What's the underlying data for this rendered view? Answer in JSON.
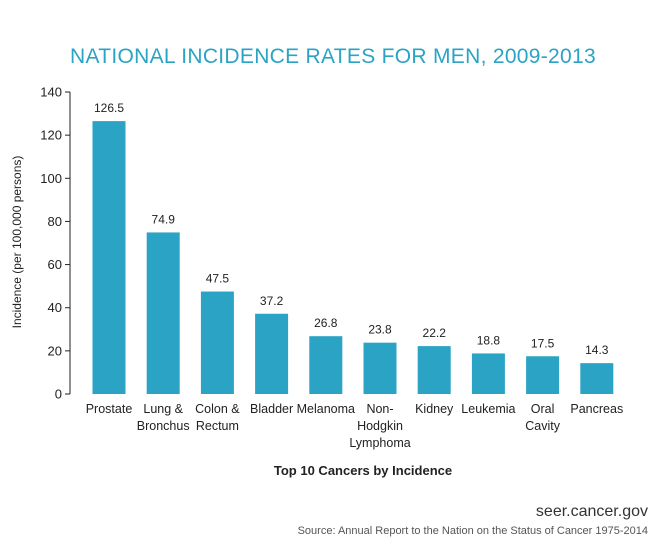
{
  "chart_data": {
    "type": "bar",
    "title": "NATIONAL INCIDENCE RATES FOR MEN, 2009-2013",
    "xlabel": "Top 10 Cancers by Incidence",
    "ylabel": "Incidence (per 100,000 persons)",
    "categories": [
      [
        "Prostate"
      ],
      [
        "Lung &",
        "Bronchus"
      ],
      [
        "Colon &",
        "Rectum"
      ],
      [
        "Bladder"
      ],
      [
        "Melanoma"
      ],
      [
        "Non-",
        "Hodgkin",
        "Lymphoma"
      ],
      [
        "Kidney"
      ],
      [
        "Leukemia"
      ],
      [
        "Oral",
        "Cavity"
      ],
      [
        "Pancreas"
      ]
    ],
    "values": [
      126.5,
      74.9,
      47.5,
      37.2,
      26.8,
      23.8,
      22.2,
      18.8,
      17.5,
      14.3
    ],
    "data_labels": [
      "126.5",
      "74.9",
      "47.5",
      "37.2",
      "26.8",
      "23.8",
      "22.2",
      "18.8",
      "17.5",
      "14.3"
    ],
    "ylim": [
      0,
      140
    ],
    "yticks": [
      0,
      20,
      40,
      60,
      80,
      100,
      120,
      140
    ],
    "grid": false,
    "legend": "none",
    "bar_color": "#2aa3c4"
  },
  "footer": {
    "site": "seer.cancer.gov",
    "source": "Source: Annual Report to the Nation on the Status of Cancer 1975-2014"
  }
}
